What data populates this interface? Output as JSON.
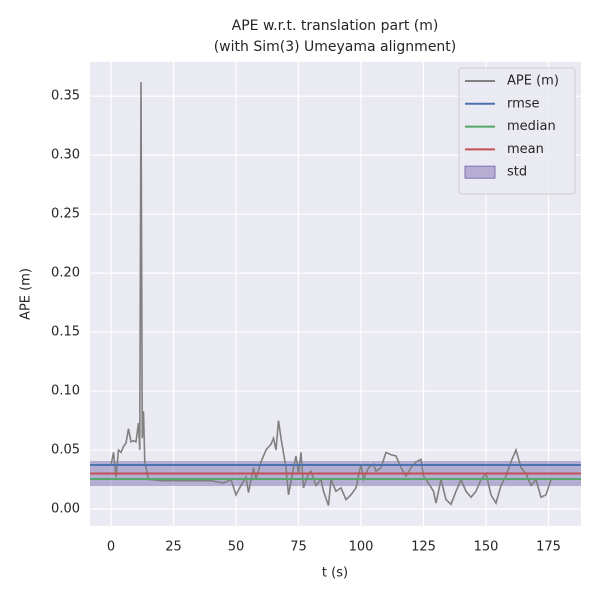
{
  "chart_data": {
    "type": "line",
    "title": "APE w.r.t. translation part (m)",
    "subtitle": "(with Sim(3) Umeyama alignment)",
    "x_label": "t (s)",
    "y_label": "APE (m)",
    "xlim": [
      -8.4,
      188
    ],
    "ylim": [
      -0.0144,
      0.379
    ],
    "xticks": [
      0,
      25,
      50,
      75,
      100,
      125,
      150,
      175
    ],
    "yticks": [
      {
        "value": 0,
        "label": "0.00"
      },
      {
        "value": 0.05,
        "label": "0.05"
      },
      {
        "value": 0.1,
        "label": "0.10"
      },
      {
        "value": 0.15,
        "label": "0.15"
      },
      {
        "value": 0.2,
        "label": "0.20"
      },
      {
        "value": 0.25,
        "label": "0.25"
      },
      {
        "value": 0.3,
        "label": "0.30"
      },
      {
        "value": 0.35,
        "label": "0.35"
      }
    ],
    "grid": true,
    "legend": "upper right",
    "x": [
      0,
      1,
      2,
      3,
      4,
      5,
      6,
      7,
      8,
      9,
      10,
      11,
      11.5,
      12,
      12.5,
      13,
      13.5,
      14,
      15,
      16,
      20,
      30,
      40,
      45,
      48,
      50,
      52,
      54,
      55,
      57,
      58,
      60,
      62,
      64,
      65,
      66,
      67,
      68,
      70,
      71,
      73,
      74,
      75,
      76,
      77,
      79,
      80,
      82,
      84,
      85,
      87,
      88,
      90,
      92,
      94,
      96,
      98,
      100,
      101,
      103,
      105,
      106,
      108,
      110,
      112,
      114,
      116,
      118,
      120,
      122,
      124,
      125,
      127,
      129,
      130,
      132,
      134,
      136,
      138,
      140,
      142,
      144,
      146,
      148,
      150,
      152,
      154,
      156,
      158,
      160,
      162,
      164,
      166,
      168,
      170,
      172,
      174,
      176,
      178
    ],
    "series": [
      {
        "name": "APE (m)",
        "color": "#808080",
        "values": [
          0.037,
          0.048,
          0.027,
          0.05,
          0.048,
          0.053,
          0.056,
          0.068,
          0.057,
          0.058,
          0.057,
          0.073,
          0.05,
          0.362,
          0.06,
          0.083,
          0.04,
          0.035,
          0.025,
          0.025,
          0.024,
          0.024,
          0.024,
          0.022,
          0.025,
          0.012,
          0.02,
          0.027,
          0.014,
          0.035,
          0.025,
          0.04,
          0.05,
          0.055,
          0.06,
          0.05,
          0.075,
          0.06,
          0.035,
          0.012,
          0.035,
          0.045,
          0.03,
          0.048,
          0.018,
          0.03,
          0.032,
          0.02,
          0.025,
          0.015,
          0.003,
          0.025,
          0.015,
          0.018,
          0.008,
          0.012,
          0.018,
          0.038,
          0.025,
          0.035,
          0.038,
          0.032,
          0.035,
          0.048,
          0.046,
          0.045,
          0.035,
          0.028,
          0.035,
          0.04,
          0.042,
          0.028,
          0.022,
          0.015,
          0.005,
          0.025,
          0.008,
          0.004,
          0.015,
          0.025,
          0.015,
          0.01,
          0.015,
          0.025,
          0.03,
          0.012,
          0.005,
          0.02,
          0.028,
          0.04,
          0.05,
          0.035,
          0.03,
          0.02,
          0.025,
          0.01,
          0.012,
          0.025,
          0.026
        ]
      }
    ],
    "hlines": [
      {
        "name": "rmse",
        "color": "#4c72b0",
        "value": 0.0373
      },
      {
        "name": "median",
        "color": "#55a868",
        "value": 0.0254
      },
      {
        "name": "mean",
        "color": "#c44e52",
        "value": 0.0301
      }
    ],
    "std": {
      "name": "std",
      "color": "#8172b2",
      "value": 0.0106
    }
  }
}
